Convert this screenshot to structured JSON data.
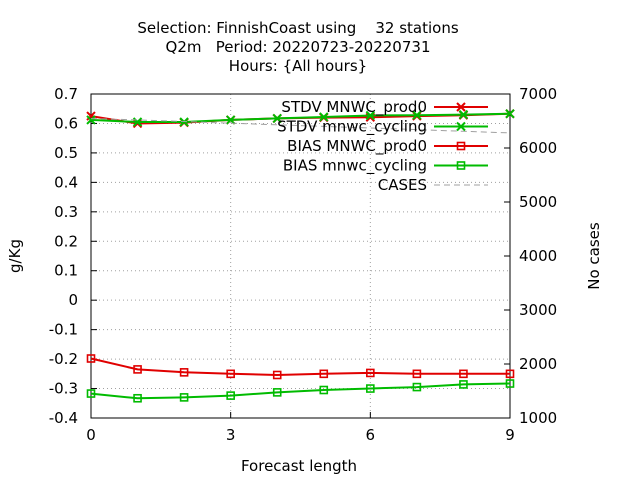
{
  "chart_data": {
    "type": "line",
    "title_lines": [
      "Selection: FinnishCoast using    32 stations",
      "Q2m   Period: 20220723-20220731",
      "Hours: {All hours}"
    ],
    "xlabel": "Forecast length",
    "ylabel": "g/Kg",
    "y2label": "No cases",
    "xlim": [
      0,
      9
    ],
    "ylim": [
      -0.4,
      0.7
    ],
    "y2lim": [
      1000,
      7000
    ],
    "x_ticks": [
      0,
      3,
      6,
      9
    ],
    "y_ticks": [
      "-0.4",
      "-0.3",
      "-0.2",
      "-0.1",
      "0",
      "0.1",
      "0.2",
      "0.3",
      "0.4",
      "0.5",
      "0.6",
      "0.7"
    ],
    "y2_ticks": [
      "1000",
      "2000",
      "3000",
      "4000",
      "5000",
      "6000",
      "7000"
    ],
    "grid": true,
    "legend_position": "top-right",
    "x": [
      0,
      1,
      2,
      3,
      4,
      5,
      6,
      7,
      8,
      9
    ],
    "series": [
      {
        "name": "STDV MNWC_prod0",
        "color": "#e00000",
        "marker": "x",
        "axis": "left",
        "values": [
          0.625,
          0.6,
          0.603,
          0.612,
          0.617,
          0.62,
          0.621,
          0.625,
          0.628,
          0.633
        ]
      },
      {
        "name": "STDV mnwc_cycling",
        "color": "#00bb00",
        "marker": "x",
        "axis": "left",
        "values": [
          0.612,
          0.605,
          0.605,
          0.612,
          0.617,
          0.622,
          0.627,
          0.628,
          0.63,
          0.633
        ]
      },
      {
        "name": "BIAS MNWC_prod0",
        "color": "#e00000",
        "marker": "square",
        "axis": "left",
        "values": [
          -0.198,
          -0.235,
          -0.245,
          -0.25,
          -0.254,
          -0.25,
          -0.247,
          -0.25,
          -0.25,
          -0.25
        ]
      },
      {
        "name": "BIAS mnwc_cycling",
        "color": "#00bb00",
        "marker": "square",
        "axis": "left",
        "values": [
          -0.317,
          -0.333,
          -0.33,
          -0.324,
          -0.313,
          -0.305,
          -0.3,
          -0.295,
          -0.286,
          -0.283
        ]
      },
      {
        "name": "CASES",
        "color": "#a0a0a0",
        "marker": "none",
        "dash": true,
        "axis": "right",
        "values": [
          6545,
          6520,
          6490,
          6460,
          6430,
          6400,
          6370,
          6340,
          6310,
          6280
        ]
      }
    ]
  }
}
